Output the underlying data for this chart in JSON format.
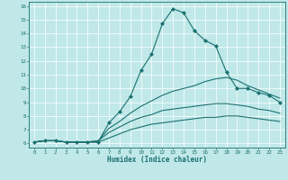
{
  "title": "",
  "xlabel": "Humidex (Indice chaleur)",
  "bg_color": "#c0e8e8",
  "line_color": "#1a7070",
  "xlim": [
    -0.5,
    23.5
  ],
  "ylim": [
    5.7,
    16.3
  ],
  "xticks": [
    0,
    1,
    2,
    3,
    4,
    5,
    6,
    7,
    8,
    9,
    10,
    11,
    12,
    13,
    14,
    15,
    16,
    17,
    18,
    19,
    20,
    21,
    22,
    23
  ],
  "yticks": [
    6,
    7,
    8,
    9,
    10,
    11,
    12,
    13,
    14,
    15,
    16
  ],
  "series": [
    {
      "x": [
        0,
        1,
        2,
        3,
        4,
        5,
        6,
        7,
        8,
        9,
        10,
        11,
        12,
        13,
        14,
        15,
        16,
        17,
        18,
        19,
        20,
        21,
        22,
        23
      ],
      "y": [
        6.1,
        6.2,
        6.2,
        6.1,
        6.1,
        6.1,
        6.1,
        7.5,
        8.3,
        9.4,
        11.3,
        12.5,
        14.7,
        15.8,
        15.5,
        14.2,
        13.5,
        13.1,
        11.2,
        10.0,
        10.0,
        9.7,
        9.5,
        9.0
      ],
      "marker": "D",
      "markersize": 2.0,
      "linewidth": 0.8
    },
    {
      "x": [
        0,
        1,
        2,
        3,
        4,
        5,
        6,
        7,
        8,
        9,
        10,
        11,
        12,
        13,
        14,
        15,
        16,
        17,
        18,
        19,
        20,
        21,
        22,
        23
      ],
      "y": [
        6.1,
        6.2,
        6.2,
        6.1,
        6.1,
        6.1,
        6.2,
        7.1,
        7.6,
        8.2,
        8.7,
        9.1,
        9.5,
        9.8,
        10.0,
        10.2,
        10.5,
        10.7,
        10.8,
        10.6,
        10.2,
        9.9,
        9.6,
        9.3
      ],
      "marker": null,
      "markersize": 0,
      "linewidth": 0.8
    },
    {
      "x": [
        0,
        1,
        2,
        3,
        4,
        5,
        6,
        7,
        8,
        9,
        10,
        11,
        12,
        13,
        14,
        15,
        16,
        17,
        18,
        19,
        20,
        21,
        22,
        23
      ],
      "y": [
        6.1,
        6.2,
        6.2,
        6.1,
        6.1,
        6.1,
        6.2,
        6.8,
        7.2,
        7.6,
        7.9,
        8.1,
        8.4,
        8.5,
        8.6,
        8.7,
        8.8,
        8.9,
        8.9,
        8.8,
        8.7,
        8.5,
        8.4,
        8.2
      ],
      "marker": null,
      "markersize": 0,
      "linewidth": 0.8
    },
    {
      "x": [
        0,
        1,
        2,
        3,
        4,
        5,
        6,
        7,
        8,
        9,
        10,
        11,
        12,
        13,
        14,
        15,
        16,
        17,
        18,
        19,
        20,
        21,
        22,
        23
      ],
      "y": [
        6.1,
        6.2,
        6.2,
        6.1,
        6.1,
        6.1,
        6.1,
        6.4,
        6.7,
        7.0,
        7.2,
        7.4,
        7.5,
        7.6,
        7.7,
        7.8,
        7.9,
        7.9,
        8.0,
        8.0,
        7.9,
        7.8,
        7.7,
        7.6
      ],
      "marker": null,
      "markersize": 0,
      "linewidth": 0.8
    }
  ]
}
